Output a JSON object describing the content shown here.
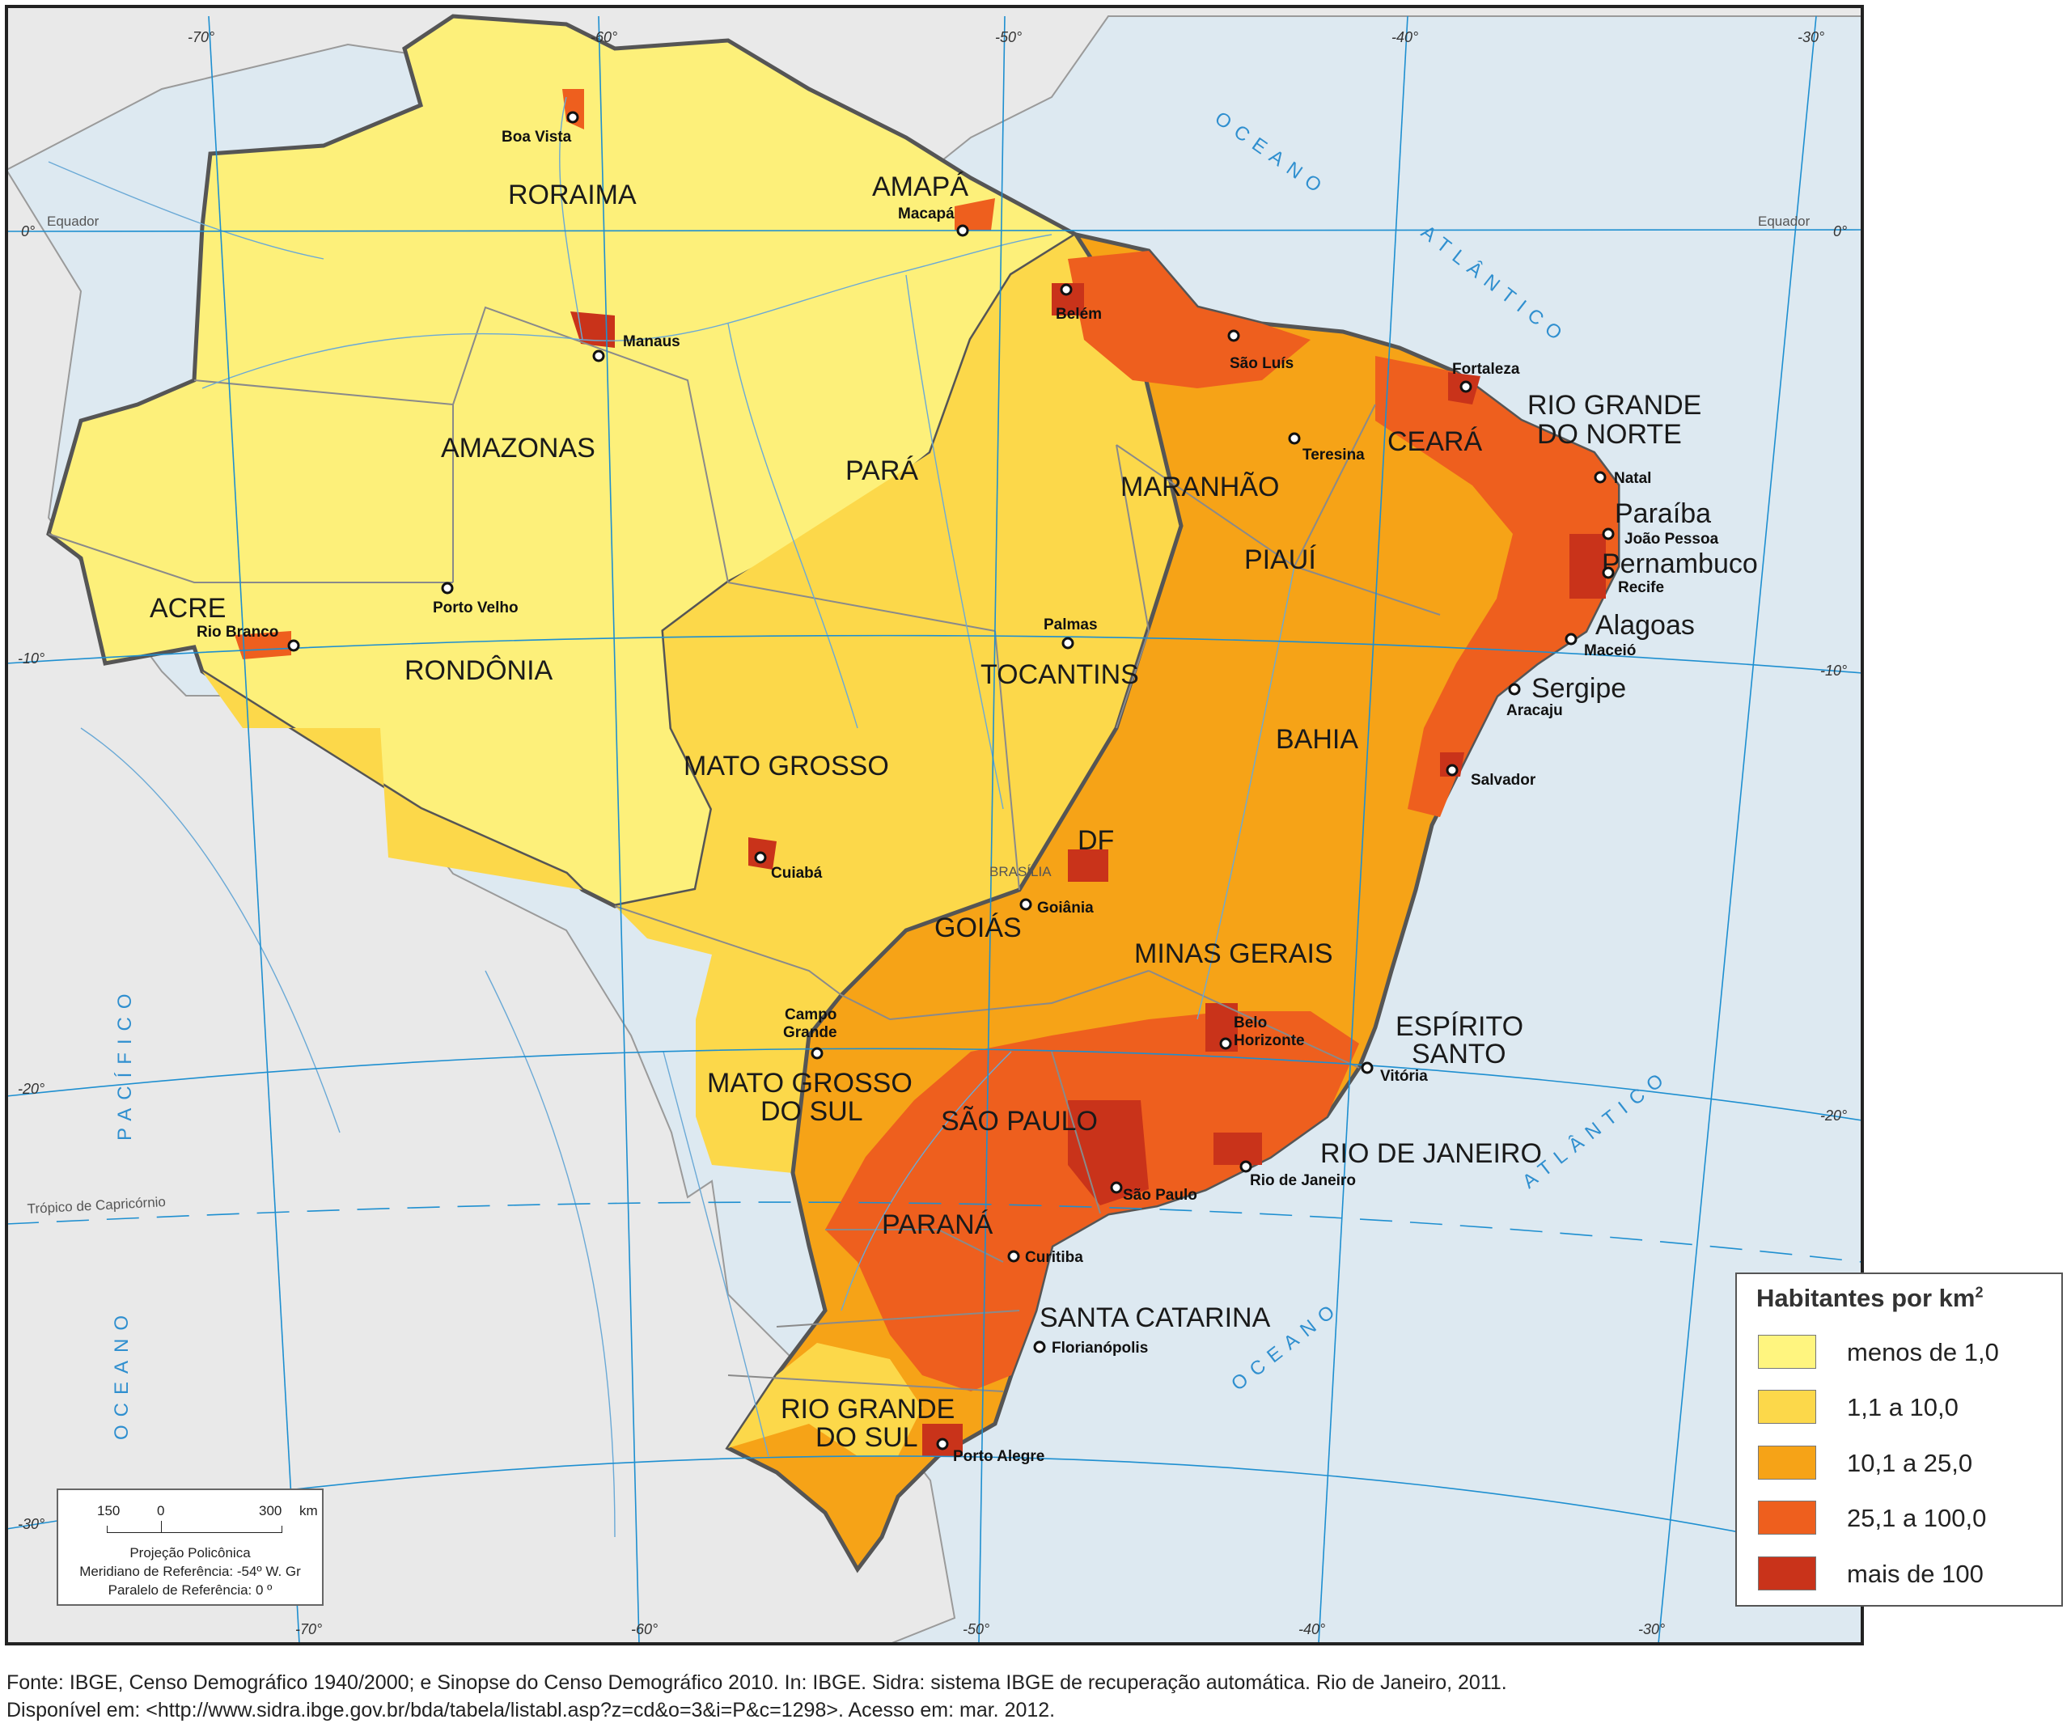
{
  "states": {
    "roraima": "RORAIMA",
    "amapa": "AMAPÁ",
    "amazonas": "AMAZONAS",
    "para": "PARÁ",
    "maranhao": "MARANHÃO",
    "ceara": "CEARÁ",
    "rn1": "RIO GRANDE",
    "rn2": "DO NORTE",
    "paraiba": "Paraíba",
    "pernambuco": "Pernambuco",
    "piaui": "PIAUÍ",
    "alagoas": "Alagoas",
    "sergipe": "Sergipe",
    "acre": "ACRE",
    "rondonia": "RONDÔNIA",
    "tocantins": "TOCANTINS",
    "bahia": "BAHIA",
    "mato_grosso": "MATO GROSSO",
    "df": "DF",
    "goias": "GOIÁS",
    "minas": "MINAS GERAIS",
    "es1": "ESPÍRITO",
    "es2": "SANTO",
    "ms1": "MATO GROSSO",
    "ms2": "DO SUL",
    "sao_paulo": "SÃO PAULO",
    "rio": "RIO DE JANEIRO",
    "parana": "PARANÁ",
    "sc": "SANTA CATARINA",
    "rs1": "RIO GRANDE",
    "rs2": "DO SUL"
  },
  "cities": {
    "boa_vista": "Boa Vista",
    "macapa": "Macapá",
    "manaus": "Manaus",
    "belem": "Belém",
    "sao_luis": "São Luís",
    "fortaleza": "Fortaleza",
    "teresina": "Teresina",
    "natal": "Natal",
    "joao_pessoa": "João Pessoa",
    "recife": "Recife",
    "maceio": "Maceió",
    "aracaju": "Aracaju",
    "salvador": "Salvador",
    "palmas": "Palmas",
    "porto_velho": "Porto Velho",
    "rio_branco": "Rio Branco",
    "cuiaba": "Cuiabá",
    "brasilia": "BRASÍLIA",
    "goiania": "Goiânia",
    "belo_horizonte1": "Belo",
    "belo_horizonte2": "Horizonte",
    "vitoria": "Vitória",
    "campo_grande1": "Campo",
    "campo_grande2": "Grande",
    "rio_de_janeiro": "Rio de Janeiro",
    "sao_paulo": "São Paulo",
    "curitiba": "Curitiba",
    "florianopolis": "Florianópolis",
    "porto_alegre": "Porto Alegre"
  },
  "map_labels": {
    "equador_left": "Equador",
    "equador_right": "Equador",
    "tropico": "Trópico de Capricórnio",
    "oceano_atlantico_n1": "OCEANO",
    "oceano_atlantico_n2": "ATLÂNTICO",
    "oceano_atlantico_s1": "OCEANO",
    "oceano_atlantico_s2": "ATLÂNTICO",
    "oceano_pacifico1": "OCEANO",
    "oceano_pacifico2": "PACÍFICO"
  },
  "coordinates": {
    "top": [
      "-70°",
      "-60°",
      "-50°",
      "-40°",
      "-30°"
    ],
    "bottom": [
      "-70°",
      "-60°",
      "-50°",
      "-40°",
      "-30°"
    ],
    "left": [
      "0°",
      "-10°",
      "-20°",
      "-30°"
    ],
    "right": [
      "0°",
      "-10°",
      "-20°"
    ]
  },
  "legend": {
    "title": "Habitantes por km",
    "title_sup": "2",
    "items": [
      {
        "label": "menos de 1,0",
        "color": "#fff57f"
      },
      {
        "label": "1,1 a 10,0",
        "color": "#fcd84a"
      },
      {
        "label": "10,1 a 25,0",
        "color": "#f6a317"
      },
      {
        "label": "25,1 a 100,0",
        "color": "#ee5f1e"
      },
      {
        "label": "mais de 100",
        "color": "#c9331a"
      }
    ]
  },
  "scale": {
    "n150": "150",
    "n0": "0",
    "n300": "300",
    "unit": "km",
    "projection": "Projeção Policônica",
    "meridian": "Meridiano de Referência: -54º W. Gr",
    "parallel": "Paralelo de Referência: 0 º"
  },
  "footnote": {
    "line1": "Fonte: IBGE, Censo Demográfico 1940/2000; e Sinopse do Censo Demográfico 2010. In: IBGE. Sidra: sistema IBGE de recuperação automática. Rio de Janeiro, 2011.",
    "line2": "Disponível em: <http://www.sidra.ibge.gov.br/bda/tabela/listabl.asp?z=cd&o=3&i=P&c=1298>. Acesso em: mar. 2012."
  },
  "colors": {
    "ocean": "#dde9f1",
    "land_foreign": "#e9e9e9",
    "graticule": "#1e8fd0"
  }
}
